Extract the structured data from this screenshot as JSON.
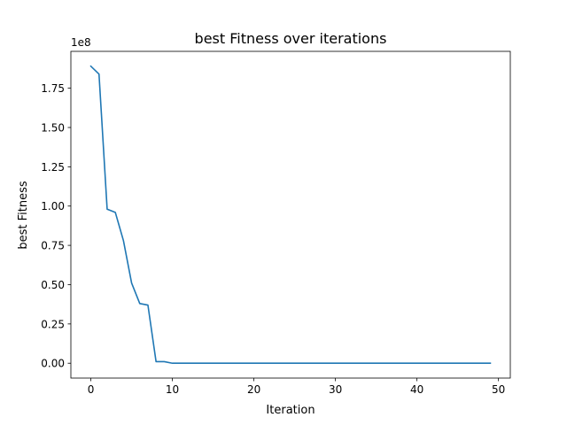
{
  "chart_data": {
    "type": "line",
    "title": "best Fitness over iterations",
    "xlabel": "Iteration",
    "ylabel": "best Fitness",
    "y_offset_label": "1e8",
    "xlim": [
      -2.45,
      51.45
    ],
    "ylim": [
      -9450000,
      198450000
    ],
    "x_ticks": [
      0,
      10,
      20,
      30,
      40,
      50
    ],
    "x_tick_labels": [
      "0",
      "10",
      "20",
      "30",
      "40",
      "50"
    ],
    "y_ticks": [
      0,
      25000000,
      50000000,
      75000000,
      100000000,
      125000000,
      150000000,
      175000000
    ],
    "y_tick_labels": [
      "0.00",
      "0.25",
      "0.50",
      "0.75",
      "1.00",
      "1.25",
      "1.50",
      "1.75"
    ],
    "grid": false,
    "line_color": "#1f77b4",
    "series": [
      {
        "x": [
          0,
          1,
          2,
          3,
          4,
          5,
          6,
          7,
          8,
          9,
          10,
          11,
          12,
          13,
          14,
          15,
          16,
          17,
          18,
          19,
          20,
          21,
          22,
          23,
          24,
          25,
          26,
          27,
          28,
          29,
          30,
          31,
          32,
          33,
          34,
          35,
          36,
          37,
          38,
          39,
          40,
          41,
          42,
          43,
          44,
          45,
          46,
          47,
          48,
          49
        ],
        "values": [
          189000000,
          184000000,
          98000000,
          96000000,
          78000000,
          51000000,
          38000000,
          37000000,
          1000000,
          1000000,
          0,
          0,
          0,
          0,
          0,
          0,
          0,
          0,
          0,
          0,
          0,
          0,
          0,
          0,
          0,
          0,
          0,
          0,
          0,
          0,
          0,
          0,
          0,
          0,
          0,
          0,
          0,
          0,
          0,
          0,
          0,
          0,
          0,
          0,
          0,
          0,
          0,
          0,
          0,
          0
        ]
      }
    ]
  }
}
